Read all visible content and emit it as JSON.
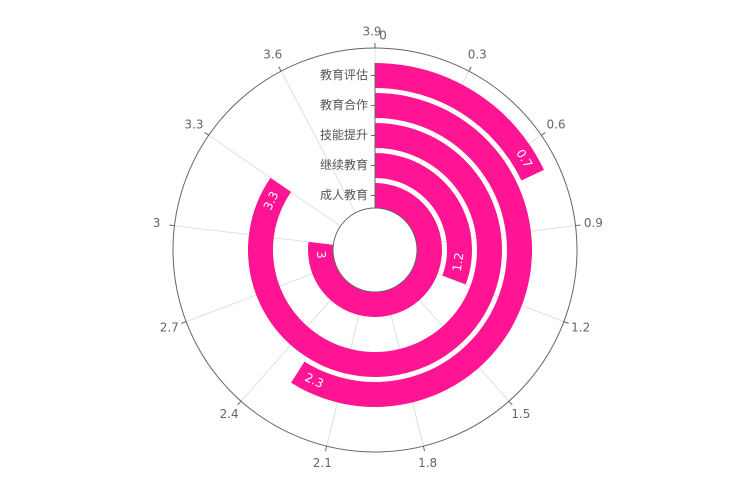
{
  "chart_data": {
    "type": "radial-bar",
    "angle_axis": {
      "min": 0,
      "max": 3.9,
      "ticks": [
        "0",
        "0.3",
        "0.6",
        "0.9",
        "1.2",
        "1.5",
        "1.8",
        "2.1",
        "2.4",
        "2.7",
        "3",
        "3.3",
        "3.6",
        "3.9"
      ],
      "tick_values": [
        0,
        0.3,
        0.6,
        0.9,
        1.2,
        1.5,
        1.8,
        2.1,
        2.4,
        2.7,
        3.0,
        3.3,
        3.6,
        3.9
      ]
    },
    "categories": [
      "成人教育",
      "继续教育",
      "技能提升",
      "教育合作",
      "教育评估"
    ],
    "values": [
      3,
      1.2,
      3.3,
      2.3,
      0.7
    ],
    "data_labels": [
      "3",
      "1.2",
      "3.3",
      "2.3",
      "0.7"
    ],
    "bar_color": "#ff1493",
    "axis_color": "#666666",
    "grid_color": "#e0e0e0",
    "grid": true
  }
}
